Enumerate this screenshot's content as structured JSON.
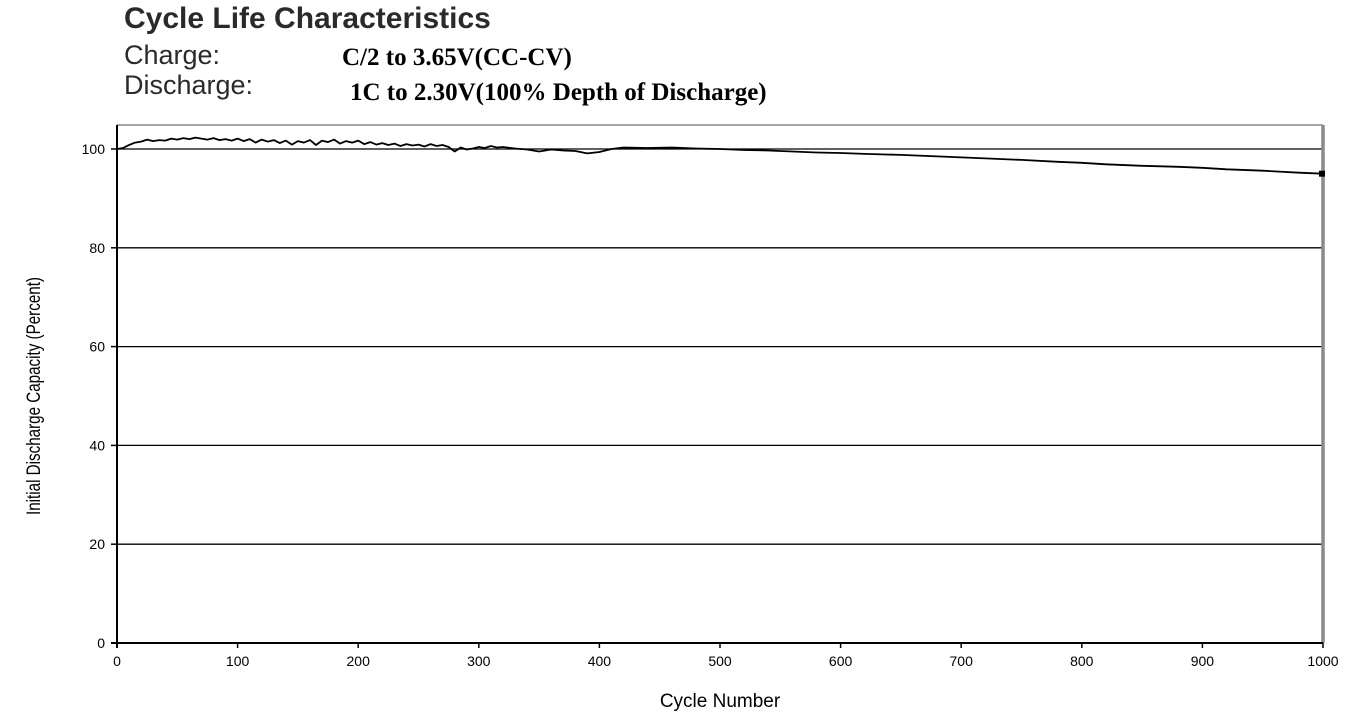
{
  "header": {
    "title": "Cycle Life Characteristics",
    "charge_label": "Charge:",
    "charge_value": "C/2 to 3.65V(CC-CV)",
    "discharge_label": "Discharge:",
    "discharge_value": "1C to 2.30V(100% Depth of Discharge)"
  },
  "chart_data": {
    "type": "line",
    "title": "Cycle Life Characteristics",
    "xlabel": "Cycle Number",
    "ylabel": "Initial Discharge Capacity (Percent)",
    "xlim": [
      0,
      1000
    ],
    "ylim": [
      0,
      100
    ],
    "xticks": [
      0,
      100,
      200,
      300,
      400,
      500,
      600,
      700,
      800,
      900,
      1000
    ],
    "yticks": [
      0,
      20,
      40,
      60,
      80,
      100
    ],
    "x_tick_labels": [
      "0",
      "100",
      "200",
      "300",
      "400",
      "500",
      "600",
      "700",
      "800",
      "900",
      "1000"
    ],
    "y_tick_labels": [
      "0",
      "20",
      "40",
      "60",
      "80",
      "100"
    ],
    "grid": "horizontal",
    "legend": "none",
    "line_color": "#000000",
    "series": [
      {
        "x": [
          0,
          5,
          10,
          15,
          20,
          25,
          30,
          35,
          40,
          45,
          50,
          55,
          60,
          65,
          70,
          75,
          80,
          85,
          90,
          95,
          100,
          105,
          110,
          115,
          120,
          125,
          130,
          135,
          140,
          145,
          150,
          155,
          160,
          165,
          170,
          175,
          180,
          185,
          190,
          195,
          200,
          205,
          210,
          215,
          220,
          225,
          230,
          235,
          240,
          245,
          250,
          255,
          260,
          265,
          270,
          275,
          280,
          285,
          290,
          295,
          300,
          305,
          310,
          315,
          320,
          330,
          340,
          350,
          360,
          370,
          380,
          390,
          400,
          410,
          420,
          440,
          460,
          480,
          500,
          520,
          540,
          560,
          580,
          600,
          620,
          650,
          680,
          700,
          720,
          750,
          780,
          800,
          820,
          850,
          880,
          900,
          920,
          950,
          980,
          1000
        ],
        "values": [
          100.0,
          100.2,
          100.8,
          101.3,
          101.5,
          101.9,
          101.6,
          101.8,
          101.7,
          102.1,
          101.9,
          102.2,
          102.0,
          102.3,
          102.1,
          101.9,
          102.2,
          101.8,
          102.0,
          101.7,
          102.1,
          101.6,
          102.0,
          101.3,
          101.9,
          101.5,
          101.8,
          101.2,
          101.7,
          100.9,
          101.6,
          101.3,
          101.8,
          100.8,
          101.7,
          101.4,
          101.9,
          101.1,
          101.6,
          101.3,
          101.7,
          101.0,
          101.4,
          100.9,
          101.2,
          100.8,
          101.1,
          100.6,
          101.0,
          100.7,
          100.9,
          100.5,
          101.0,
          100.6,
          100.8,
          100.4,
          99.5,
          100.3,
          99.9,
          100.1,
          100.4,
          100.2,
          100.6,
          100.3,
          100.4,
          100.1,
          99.9,
          99.5,
          99.9,
          99.7,
          99.6,
          99.1,
          99.4,
          100.0,
          100.3,
          100.2,
          100.3,
          100.1,
          100.0,
          99.8,
          99.7,
          99.5,
          99.3,
          99.2,
          99.0,
          98.8,
          98.5,
          98.3,
          98.1,
          97.8,
          97.4,
          97.2,
          96.9,
          96.6,
          96.4,
          96.2,
          95.9,
          95.6,
          95.2,
          95.0
        ]
      }
    ]
  }
}
